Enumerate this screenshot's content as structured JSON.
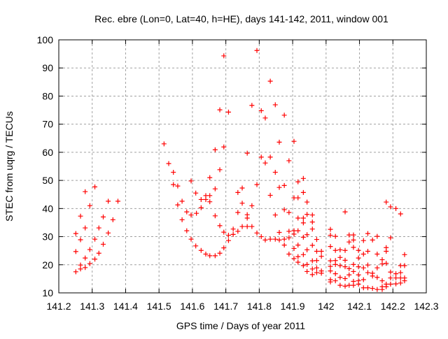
{
  "chart_data": {
    "type": "scatter",
    "title": "Rec. ebre (Lon=0, Lat=40, h=HE), days 141-142, 2011, window 001",
    "xlabel": "GPS time / Days of year 2011",
    "ylabel": "STEC from uqrg / TECUs",
    "xlim": [
      141.2,
      142.3
    ],
    "ylim": [
      10,
      100
    ],
    "grid": true,
    "x_ticks": [
      141.2,
      141.3,
      141.4,
      141.5,
      141.6,
      141.7,
      141.8,
      141.9,
      142.0,
      142.1,
      142.2,
      142.3
    ],
    "x_tick_labels": [
      "141.2",
      "141.3",
      "141.4",
      "141.5",
      "141.6",
      "141.7",
      "141.8",
      "141.9",
      "142",
      "142.1",
      "142.2",
      "142.3"
    ],
    "y_ticks": [
      10,
      20,
      30,
      40,
      50,
      60,
      70,
      80,
      90,
      100
    ],
    "y_tick_labels": [
      "10",
      "20",
      "30",
      "40",
      "50",
      "60",
      "70",
      "80",
      "90",
      "100"
    ],
    "marker": "plus",
    "series": [
      {
        "name": "STEC",
        "color": "#ff0000",
        "points": [
          [
            141.251,
            17.5
          ],
          [
            141.265,
            18.5
          ],
          [
            141.279,
            19.0
          ],
          [
            141.265,
            19.9
          ],
          [
            141.293,
            20.4
          ],
          [
            141.308,
            22.0
          ],
          [
            141.279,
            22.4
          ],
          [
            141.32,
            24.1
          ],
          [
            141.251,
            24.7
          ],
          [
            141.293,
            25.4
          ],
          [
            141.333,
            27.3
          ],
          [
            141.265,
            28.9
          ],
          [
            141.308,
            29.1
          ],
          [
            141.251,
            31.1
          ],
          [
            141.348,
            31.3
          ],
          [
            141.279,
            33.1
          ],
          [
            141.32,
            33.1
          ],
          [
            141.362,
            36.0
          ],
          [
            141.265,
            37.3
          ],
          [
            141.333,
            37.0
          ],
          [
            141.293,
            41.0
          ],
          [
            141.348,
            42.6
          ],
          [
            141.377,
            42.6
          ],
          [
            141.279,
            46.0
          ],
          [
            141.308,
            47.7
          ],
          [
            141.515,
            63.0
          ],
          [
            141.529,
            56.0
          ],
          [
            141.543,
            52.9
          ],
          [
            141.543,
            48.5
          ],
          [
            141.556,
            48.0
          ],
          [
            141.569,
            42.6
          ],
          [
            141.556,
            41.3
          ],
          [
            141.583,
            38.8
          ],
          [
            141.569,
            36.0
          ],
          [
            141.596,
            37.7
          ],
          [
            141.583,
            32.1
          ],
          [
            141.596,
            29.1
          ],
          [
            141.596,
            49.8
          ],
          [
            141.61,
            45.5
          ],
          [
            141.612,
            38.3
          ],
          [
            141.61,
            26.7
          ],
          [
            141.626,
            25.1
          ],
          [
            141.626,
            43.2
          ],
          [
            141.626,
            40.3
          ],
          [
            141.64,
            44.6
          ],
          [
            141.64,
            43.2
          ],
          [
            141.64,
            23.8
          ],
          [
            141.652,
            44.6
          ],
          [
            141.652,
            42.4
          ],
          [
            141.652,
            51.0
          ],
          [
            141.652,
            23.2
          ],
          [
            141.668,
            23.2
          ],
          [
            141.668,
            47.0
          ],
          [
            141.668,
            37.4
          ],
          [
            141.668,
            60.9
          ],
          [
            141.682,
            75.1
          ],
          [
            141.682,
            53.8
          ],
          [
            141.682,
            33.9
          ],
          [
            141.682,
            24.1
          ],
          [
            141.694,
            94.3
          ],
          [
            141.694,
            61.9
          ],
          [
            141.694,
            31.6
          ],
          [
            141.694,
            26.0
          ],
          [
            141.708,
            74.3
          ],
          [
            141.708,
            30.5
          ],
          [
            141.708,
            28.6
          ],
          [
            141.722,
            32.7
          ],
          [
            141.722,
            30.8
          ],
          [
            141.736,
            38.6
          ],
          [
            141.736,
            31.9
          ],
          [
            141.736,
            45.7
          ],
          [
            141.749,
            47.3
          ],
          [
            141.749,
            41.9
          ],
          [
            141.749,
            33.6
          ],
          [
            141.764,
            59.7
          ],
          [
            141.764,
            37.8
          ],
          [
            141.764,
            36.6
          ],
          [
            141.793,
            96.2
          ],
          [
            141.833,
            85.3
          ],
          [
            141.778,
            76.7
          ],
          [
            141.806,
            74.8
          ],
          [
            141.818,
            72.2
          ],
          [
            141.848,
            76.9
          ],
          [
            141.875,
            73.2
          ],
          [
            141.86,
            63.6
          ],
          [
            141.904,
            63.9
          ],
          [
            141.806,
            58.3
          ],
          [
            141.833,
            58.3
          ],
          [
            141.818,
            56.2
          ],
          [
            141.889,
            57.0
          ],
          [
            141.848,
            52.9
          ],
          [
            141.793,
            48.5
          ],
          [
            141.86,
            47.5
          ],
          [
            141.875,
            48.2
          ],
          [
            141.833,
            44.7
          ],
          [
            141.916,
            49.5
          ],
          [
            141.932,
            50.7
          ],
          [
            141.932,
            45.7
          ],
          [
            141.904,
            43.8
          ],
          [
            141.916,
            43.8
          ],
          [
            141.943,
            42.3
          ],
          [
            141.875,
            39.6
          ],
          [
            141.889,
            38.6
          ],
          [
            141.848,
            37.7
          ],
          [
            141.778,
            41.0
          ],
          [
            141.916,
            36.6
          ],
          [
            141.932,
            36.6
          ],
          [
            141.943,
            37.9
          ],
          [
            141.959,
            37.7
          ],
          [
            141.932,
            34.9
          ],
          [
            141.959,
            35.2
          ],
          [
            141.959,
            32.7
          ],
          [
            141.764,
            33.6
          ],
          [
            141.778,
            33.6
          ],
          [
            141.793,
            31.3
          ],
          [
            141.806,
            30.0
          ],
          [
            141.818,
            28.8
          ],
          [
            141.833,
            29.1
          ],
          [
            141.848,
            29.1
          ],
          [
            141.86,
            28.8
          ],
          [
            141.86,
            31.5
          ],
          [
            141.875,
            29.1
          ],
          [
            141.875,
            27.0
          ],
          [
            141.889,
            31.9
          ],
          [
            141.889,
            29.6
          ],
          [
            141.889,
            23.8
          ],
          [
            141.904,
            32.1
          ],
          [
            141.904,
            30.9
          ],
          [
            141.904,
            25.8
          ],
          [
            141.904,
            22.2
          ],
          [
            141.916,
            32.1
          ],
          [
            141.916,
            27.0
          ],
          [
            141.916,
            22.9
          ],
          [
            141.916,
            20.9
          ],
          [
            141.932,
            29.8
          ],
          [
            141.932,
            23.6
          ],
          [
            141.932,
            19.7
          ],
          [
            141.943,
            30.7
          ],
          [
            141.943,
            25.3
          ],
          [
            141.943,
            20.1
          ],
          [
            141.943,
            17.6
          ],
          [
            141.959,
            26.9
          ],
          [
            141.959,
            21.4
          ],
          [
            141.959,
            18.5
          ],
          [
            141.959,
            16.5
          ],
          [
            141.972,
            29.0
          ],
          [
            141.972,
            24.8
          ],
          [
            141.972,
            21.5
          ],
          [
            141.972,
            18.9
          ],
          [
            141.972,
            17.2
          ],
          [
            141.986,
            24.8
          ],
          [
            141.986,
            23.0
          ],
          [
            141.986,
            17.8
          ],
          [
            141.986,
            17.0
          ],
          [
            142.013,
            32.6
          ],
          [
            142.013,
            30.5
          ],
          [
            142.013,
            26.5
          ],
          [
            142.013,
            21.4
          ],
          [
            142.013,
            19.4
          ],
          [
            142.013,
            17.8
          ],
          [
            142.013,
            14.7
          ],
          [
            142.013,
            13.9
          ],
          [
            142.028,
            30.1
          ],
          [
            142.028,
            25.1
          ],
          [
            142.028,
            21.5
          ],
          [
            142.028,
            20.1
          ],
          [
            142.028,
            16.8
          ],
          [
            142.028,
            14.3
          ],
          [
            142.042,
            25.3
          ],
          [
            142.042,
            22.6
          ],
          [
            142.042,
            19.7
          ],
          [
            142.042,
            15.5
          ],
          [
            142.042,
            12.7
          ],
          [
            142.057,
            38.8
          ],
          [
            142.057,
            25.1
          ],
          [
            142.057,
            21.6
          ],
          [
            142.057,
            19.3
          ],
          [
            142.057,
            15.1
          ],
          [
            142.057,
            12.4
          ],
          [
            142.069,
            30.6
          ],
          [
            142.069,
            28.1
          ],
          [
            142.069,
            18.6
          ],
          [
            142.069,
            16.4
          ],
          [
            142.069,
            12.7
          ],
          [
            142.082,
            30.6
          ],
          [
            142.082,
            28.8
          ],
          [
            142.082,
            26.2
          ],
          [
            142.082,
            20.1
          ],
          [
            142.082,
            17.6
          ],
          [
            142.082,
            14.1
          ],
          [
            142.082,
            12.7
          ],
          [
            142.097,
            25.1
          ],
          [
            142.097,
            22.4
          ],
          [
            142.097,
            19.3
          ],
          [
            142.097,
            16.4
          ],
          [
            142.097,
            14.3
          ],
          [
            142.097,
            13.1
          ],
          [
            142.112,
            28.6
          ],
          [
            142.112,
            23.8
          ],
          [
            142.112,
            18.9
          ],
          [
            142.112,
            14.7
          ],
          [
            142.112,
            11.8
          ],
          [
            142.125,
            31.1
          ],
          [
            142.125,
            24.8
          ],
          [
            142.125,
            19.9
          ],
          [
            142.125,
            17.2
          ],
          [
            142.125,
            11.8
          ],
          [
            142.139,
            28.8
          ],
          [
            142.139,
            17.0
          ],
          [
            142.139,
            16.0
          ],
          [
            142.139,
            11.6
          ],
          [
            142.153,
            30.1
          ],
          [
            142.153,
            23.8
          ],
          [
            142.153,
            18.9
          ],
          [
            142.153,
            15.5
          ],
          [
            142.153,
            11.2
          ],
          [
            142.168,
            21.8
          ],
          [
            142.168,
            20.3
          ],
          [
            142.168,
            14.3
          ],
          [
            142.168,
            12.2
          ],
          [
            142.168,
            11.2
          ],
          [
            142.18,
            42.3
          ],
          [
            142.18,
            26.1
          ],
          [
            142.18,
            24.8
          ],
          [
            142.18,
            20.5
          ],
          [
            142.18,
            13.1
          ],
          [
            142.18,
            12.2
          ],
          [
            142.193,
            40.6
          ],
          [
            142.193,
            29.6
          ],
          [
            142.193,
            17.4
          ],
          [
            142.193,
            15.3
          ],
          [
            142.193,
            13.1
          ],
          [
            142.209,
            40.0
          ],
          [
            142.209,
            16.8
          ],
          [
            142.209,
            15.3
          ],
          [
            142.209,
            13.2
          ],
          [
            142.223,
            38.1
          ],
          [
            142.223,
            19.7
          ],
          [
            142.223,
            17.2
          ],
          [
            142.223,
            15.3
          ],
          [
            142.223,
            13.5
          ],
          [
            142.235,
            23.6
          ],
          [
            142.235,
            19.7
          ],
          [
            142.235,
            15.3
          ],
          [
            142.235,
            14.3
          ]
        ]
      }
    ]
  }
}
